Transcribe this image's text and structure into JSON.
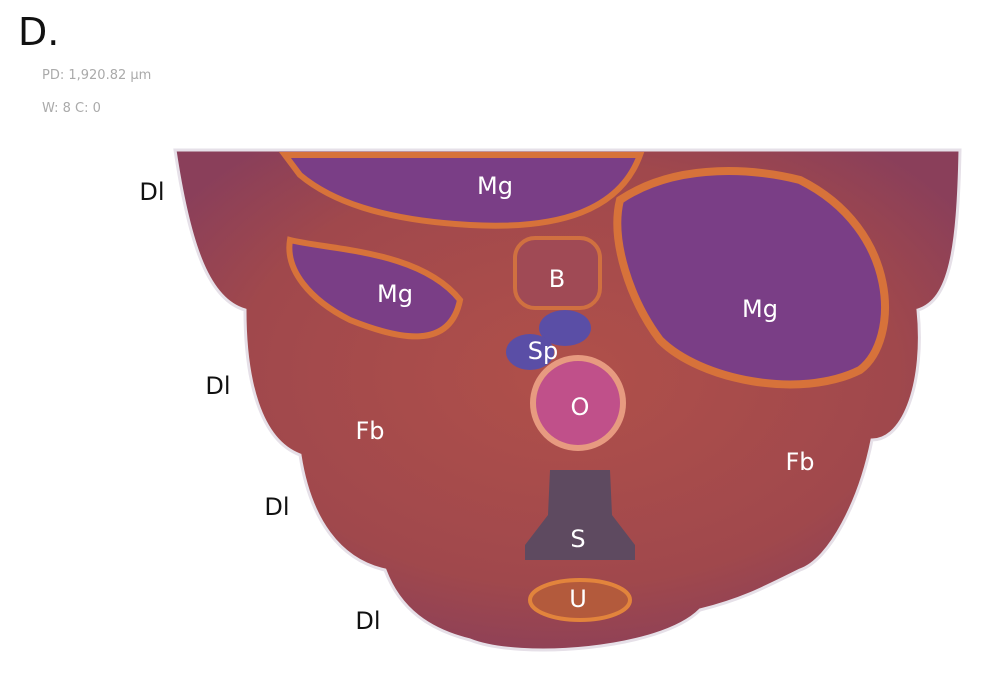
{
  "panel": "D.",
  "info": [
    "PD: 1,920.82 µm",
    "W: 8 C: 0"
  ],
  "labels": [
    "Mg",
    "Mg",
    "Mg",
    "B",
    "Sp",
    "O",
    "Fb",
    "Fb",
    "S",
    "U",
    "Dl",
    "Dl",
    "Dl",
    "Dl"
  ]
}
